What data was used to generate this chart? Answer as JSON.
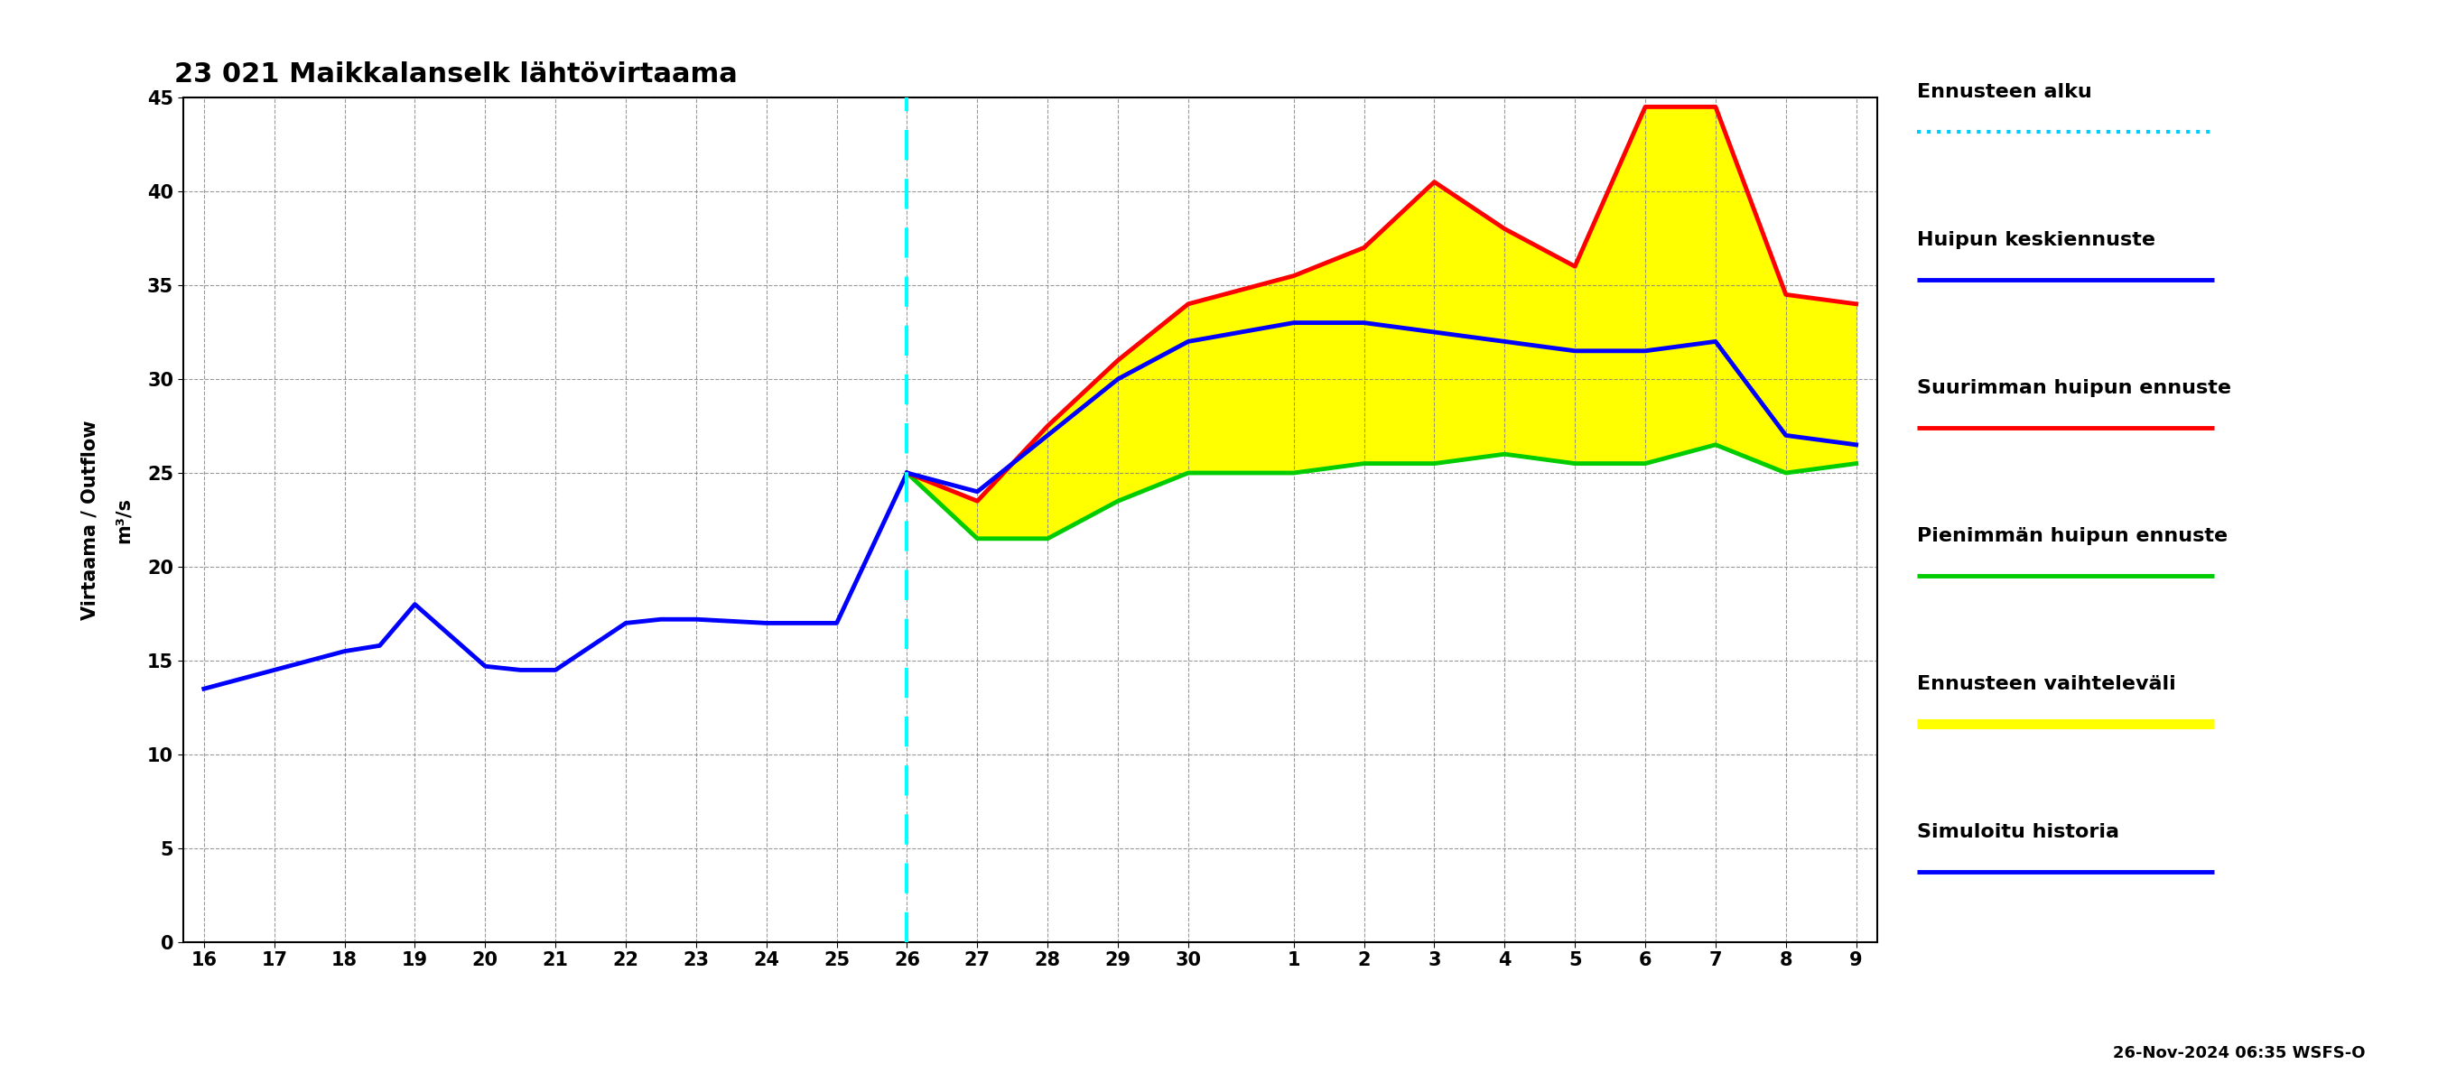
{
  "title": "23 021 Maikkalanselk lähtövirtaama",
  "ylabel": "Virtaama / Outflow   m³/s",
  "background_color": "#ffffff",
  "ylim": [
    0,
    45
  ],
  "yticks": [
    0,
    5,
    10,
    15,
    20,
    25,
    30,
    35,
    40,
    45
  ],
  "footer_text": "26-Nov-2024 06:35 WSFS-O",
  "history_nov_days": [
    16,
    17,
    18,
    18.5,
    19,
    20,
    20.5,
    21,
    22,
    22.5,
    23,
    24,
    25,
    26
  ],
  "history_y": [
    13.5,
    14.5,
    15.5,
    15.8,
    18.0,
    14.7,
    14.5,
    14.5,
    17.0,
    17.2,
    17.2,
    17.0,
    17.0,
    25.0
  ],
  "forecast_nov_days": [
    26,
    27,
    28,
    29,
    30
  ],
  "forecast_dec_days": [
    1,
    2,
    3,
    4,
    5,
    6,
    7,
    8,
    9
  ],
  "blue_nov_y": [
    25.0,
    24.0,
    27.0,
    30.0,
    32.0
  ],
  "blue_dec_y": [
    33.0,
    33.0,
    32.5,
    32.0,
    31.5,
    31.5,
    32.0,
    27.0,
    26.5
  ],
  "red_nov_y": [
    25.0,
    23.5,
    27.5,
    31.0,
    34.0
  ],
  "red_dec_y": [
    35.5,
    37.0,
    40.5,
    38.0,
    36.0,
    44.5,
    44.5,
    34.5,
    34.0
  ],
  "green_nov_y": [
    25.0,
    21.5,
    21.5,
    23.5,
    25.0
  ],
  "green_dec_y": [
    25.0,
    25.5,
    25.5,
    26.0,
    25.5,
    25.5,
    26.5,
    25.0,
    25.5
  ],
  "forecast_vline_nov_day": 26,
  "nov_tick_days": [
    16,
    17,
    18,
    19,
    20,
    21,
    22,
    23,
    24,
    25,
    26,
    27,
    28,
    29,
    30
  ],
  "dec_tick_days": [
    1,
    2,
    3,
    4,
    5,
    6,
    7,
    8,
    9
  ],
  "legend_items": [
    {
      "label": "Ennusteen alku",
      "color": "#00ccff",
      "style": "dotted",
      "lw": 3.0
    },
    {
      "label": "Huipun keskiennuste",
      "color": "#0000ff",
      "style": "solid",
      "lw": 3.5
    },
    {
      "label": "Suurimman huipun ennuste",
      "color": "#ff0000",
      "style": "solid",
      "lw": 3.5
    },
    {
      "label": "Pienimmän huipun ennuste",
      "color": "#00cc00",
      "style": "solid",
      "lw": 3.5
    },
    {
      "label": "Ennusteen vaihteleväli",
      "color": "#ffff00",
      "style": "solid",
      "lw": 8.0
    },
    {
      "label": "Simuloitu historia",
      "color": "#0000ff",
      "style": "solid",
      "lw": 3.5
    }
  ]
}
